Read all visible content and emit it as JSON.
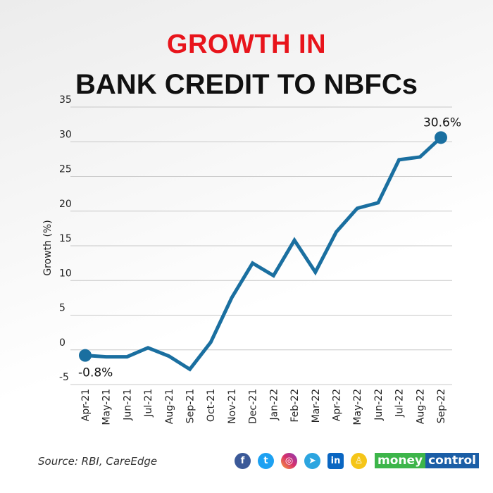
{
  "title_line1": "GROWTH IN",
  "title_line2": "BANK CREDIT TO NBFCs",
  "source": "Source: RBI, CareEdge",
  "social_icons": [
    "facebook-icon",
    "twitter-icon",
    "instagram-icon",
    "telegram-icon",
    "linkedin-icon",
    "koo-icon"
  ],
  "logo": {
    "part1": "money",
    "part2": "control"
  },
  "colors": {
    "title_accent": "#e8141b",
    "line": "#1a6fa0",
    "logo_green": "#3db54a",
    "logo_blue": "#1b5ea6"
  },
  "chart_data": {
    "type": "line",
    "title": "GROWTH IN BANK CREDIT TO NBFCs",
    "xlabel": "",
    "ylabel": "Growth (%)",
    "ylim": [
      -5,
      35
    ],
    "yticks": [
      -5,
      0,
      5,
      10,
      15,
      20,
      25,
      30,
      35
    ],
    "grid": true,
    "categories": [
      "Apr-21",
      "May-21",
      "Jun-21",
      "Jul-21",
      "Aug-21",
      "Sep-21",
      "Oct-21",
      "Nov-21",
      "Dec-21",
      "Jan-22",
      "Feb-22",
      "Mar-22",
      "Apr-22",
      "May-22",
      "Jun-22",
      "Jul-22",
      "Aug-22",
      "Sep-22"
    ],
    "values": [
      -0.8,
      -1.0,
      -1.0,
      0.3,
      -0.9,
      -2.8,
      1.1,
      7.5,
      12.5,
      10.7,
      15.8,
      11.2,
      17.0,
      20.4,
      21.2,
      27.4,
      27.8,
      30.6
    ],
    "annotations": [
      {
        "index": 0,
        "text": "-0.8%"
      },
      {
        "index": 17,
        "text": "30.6%"
      }
    ]
  }
}
